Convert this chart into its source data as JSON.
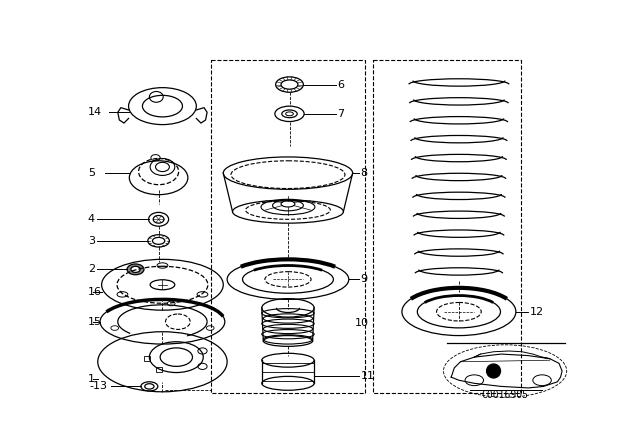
{
  "bg_color": "#ffffff",
  "line_color": "#000000",
  "diagram_code": "C0016905",
  "figsize": [
    6.4,
    4.48
  ],
  "dpi": 100
}
